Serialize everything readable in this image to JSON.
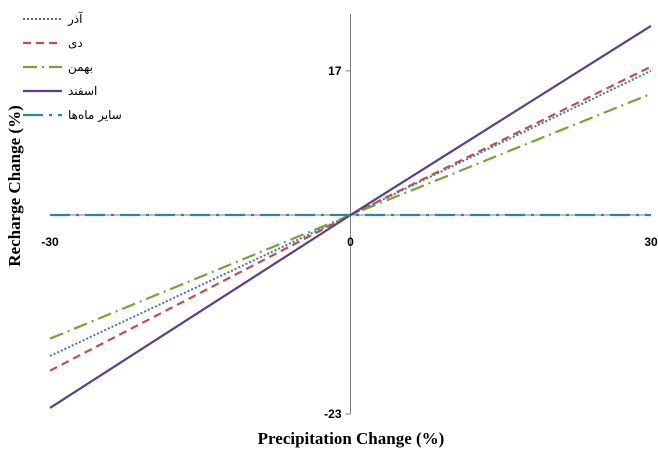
{
  "chart_data": {
    "type": "line",
    "xlabel": "Precipitation Change (%)",
    "ylabel": "Recharge Change (%)",
    "xlim": [
      -30,
      30
    ],
    "ylim": [
      -23,
      23
    ],
    "x_ticks": [
      {
        "value": -30,
        "label": "-30"
      },
      {
        "value": 0,
        "label": "0"
      },
      {
        "value": 30,
        "label": "30"
      }
    ],
    "y_ticks": [
      {
        "value": 17,
        "label": "17"
      },
      {
        "value": -23,
        "label": "-23"
      }
    ],
    "grid": false,
    "legend_position": "top-left",
    "series": [
      {
        "name": "آذر",
        "color": "#4472c4",
        "dash": "dotted",
        "x": [
          -30,
          0,
          30
        ],
        "y": [
          -16.3,
          0,
          17.0
        ]
      },
      {
        "name": "دی",
        "color": "#c0504d",
        "dash": "dashed",
        "x": [
          -30,
          0,
          30
        ],
        "y": [
          -18.0,
          0,
          17.5
        ]
      },
      {
        "name": "بهمن",
        "color": "#77a33a",
        "dash": "dashdot",
        "x": [
          -30,
          0,
          30
        ],
        "y": [
          -14.3,
          0,
          14.3
        ]
      },
      {
        "name": "اسفند",
        "color": "#5b3f8c",
        "dash": "solid",
        "x": [
          -30,
          0,
          30
        ],
        "y": [
          -22.3,
          0,
          22.3
        ]
      },
      {
        "name": "سایر ماه‌ها",
        "color": "#31849b",
        "dash": "longdashdot",
        "x": [
          -30,
          0,
          30
        ],
        "y": [
          0,
          0,
          0
        ]
      }
    ]
  }
}
